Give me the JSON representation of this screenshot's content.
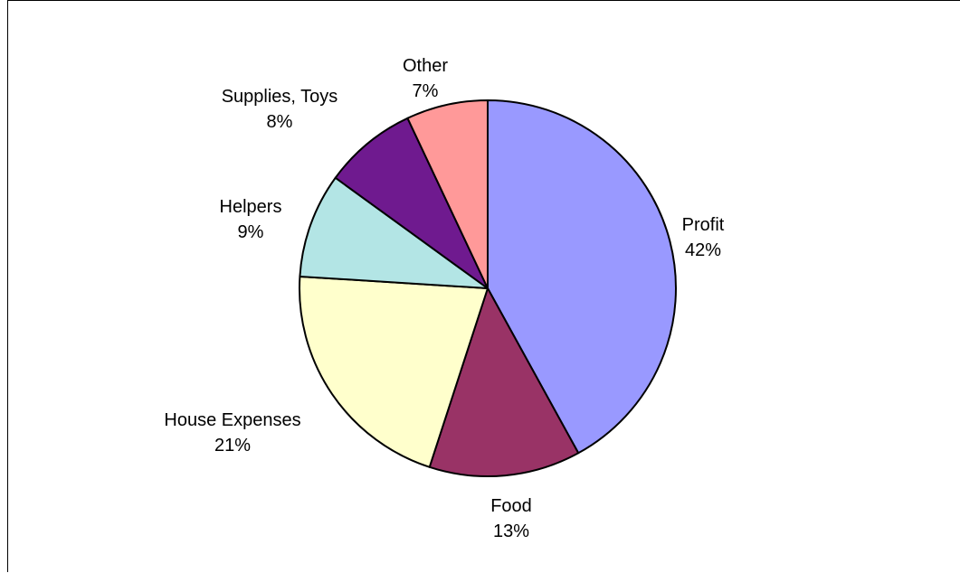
{
  "chart_data": {
    "type": "pie",
    "start_angle_deg": 0,
    "direction": "clockwise",
    "slices": [
      {
        "label": "Profit",
        "value": 42,
        "value_label": "42%",
        "color": "#9999ff"
      },
      {
        "label": "Food",
        "value": 13,
        "value_label": "13%",
        "color": "#993366"
      },
      {
        "label": "House Expenses",
        "value": 21,
        "value_label": "21%",
        "color": "#ffffcc"
      },
      {
        "label": "Helpers",
        "value": 9,
        "value_label": "9%",
        "color": "#b3e5e5"
      },
      {
        "label": "Supplies, Toys",
        "value": 8,
        "value_label": "8%",
        "color": "#6f1a8f"
      },
      {
        "label": "Other",
        "value": 7,
        "value_label": "7%",
        "color": "#ff9999"
      }
    ],
    "legend": false
  }
}
